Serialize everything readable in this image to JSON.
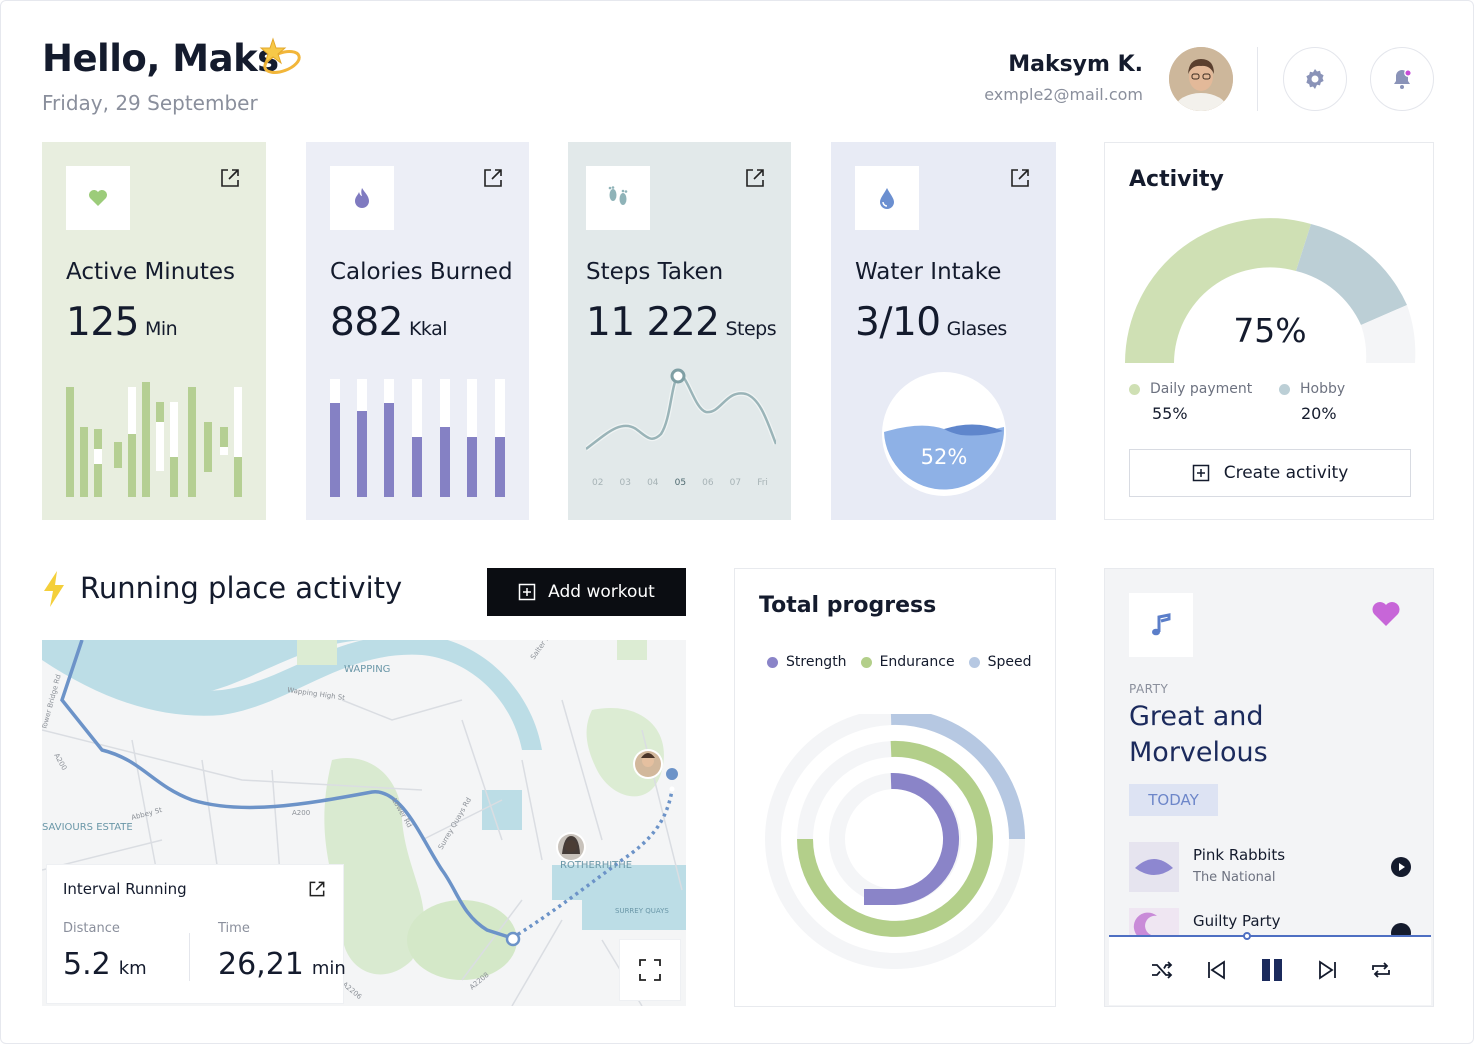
{
  "header": {
    "greeting": "Hello, Maks",
    "date": "Friday, 29 September",
    "user_name": "Maksym K.",
    "user_email": "exmple2@mail.com"
  },
  "stats": [
    {
      "title": "Active Minutes",
      "value": "125",
      "unit": "Min",
      "bg": "#e8eedf",
      "icon": "heart-icon"
    },
    {
      "title": "Calories Burned",
      "value": "882",
      "unit": "Kkal",
      "bg": "#eceef6",
      "icon": "flame-icon"
    },
    {
      "title": "Steps Taken",
      "value": "11 222",
      "unit": "Steps",
      "bg": "#e2e9ea",
      "icon": "footsteps-icon"
    },
    {
      "title": "Water Intake",
      "value": "3/10",
      "unit": "Glases",
      "bg": "#e8ebf5",
      "icon": "water-drop-icon"
    }
  ],
  "steps_axis": [
    "02",
    "03",
    "04",
    "05",
    "06",
    "07",
    "Fri"
  ],
  "water_percent": "52%",
  "activity": {
    "title": "Activity",
    "percent": "75%",
    "legend": [
      {
        "label": "Daily payment",
        "value": "55%",
        "color": "#cfe0b4"
      },
      {
        "label": "Hobby",
        "value": "20%",
        "color": "#bccfd6"
      }
    ],
    "create_label": "Create activity"
  },
  "running": {
    "title": "Running place activity",
    "add_workout_label": "Add workout",
    "map_labels": [
      "WAPPING",
      "Wapping High St",
      "ROTHERHITHE",
      "SURREY QUAYS",
      "SAVIOURS ESTATE",
      "A200",
      "Salter Rd",
      "Surrey Quays Rd",
      "Lower Rd",
      "Abbey St",
      "Tower Bridge Rd",
      "A2208",
      "A2206"
    ],
    "interval": {
      "title": "Interval Running",
      "distance_label": "Distance",
      "distance_value": "5.2",
      "distance_unit": "km",
      "time_label": "Time",
      "time_value": "26,21",
      "time_unit": "min"
    }
  },
  "progress": {
    "title": "Total progress",
    "legend": [
      {
        "label": "Strength",
        "color": "#8a84c8"
      },
      {
        "label": "Endurance",
        "color": "#b3cf8a"
      },
      {
        "label": "Speed",
        "color": "#b6c8e2"
      }
    ]
  },
  "music": {
    "category": "PARTY",
    "title": "Great and Morvelous",
    "badge": "TODAY",
    "tracks": [
      {
        "name": "Pink Rabbits",
        "artist": "The National"
      },
      {
        "name": "Guilty Party",
        "artist": ""
      }
    ]
  }
}
